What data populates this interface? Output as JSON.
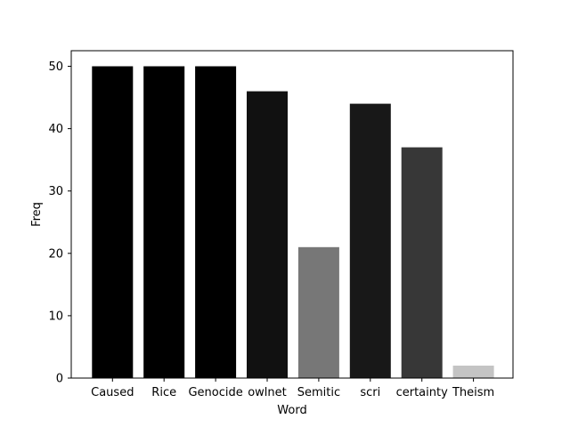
{
  "chart_data": {
    "type": "bar",
    "categories": [
      "Caused",
      "Rice",
      "Genocide",
      "owlnet",
      "Semitic",
      "scri",
      "certainty",
      "Theism"
    ],
    "values": [
      50,
      50,
      50,
      46,
      21,
      44,
      37,
      2
    ],
    "bar_colors": [
      "#000000",
      "#000000",
      "#000000",
      "#111111",
      "#777777",
      "#181818",
      "#373737",
      "#c4c4c4"
    ],
    "xlabel": "Word",
    "ylabel": "Freq",
    "ylim": [
      0,
      52.5
    ],
    "yticks": [
      0,
      10,
      20,
      30,
      40,
      50
    ],
    "grid": false,
    "legend": "none"
  }
}
